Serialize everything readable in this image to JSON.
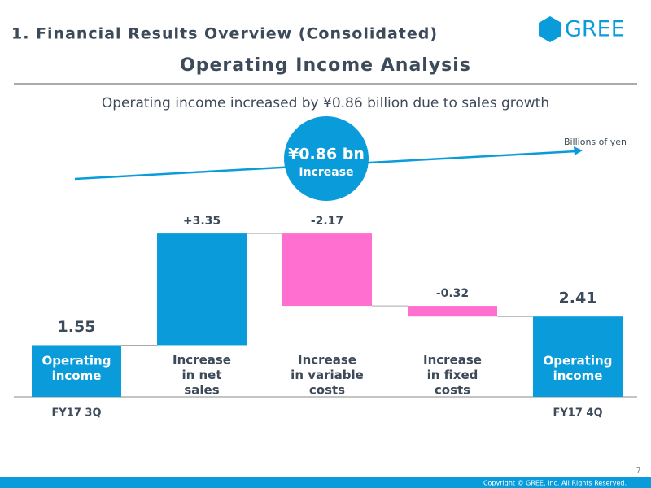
{
  "header": {
    "title": "1. Financial Results Overview (Consolidated)",
    "logo": "GREE"
  },
  "chart_data": {
    "type": "waterfall",
    "title": "Operating Income Analysis",
    "subtitle": "Operating income increased by ¥0.86 billion due to sales growth",
    "unit_label": "Billions of yen",
    "annotation": {
      "amount": "¥0.86 bn",
      "text": "Increase"
    },
    "categories": [
      [
        "Operating",
        "income"
      ],
      [
        "Increase",
        "in net",
        "sales"
      ],
      [
        "Increase",
        "in variable",
        "costs"
      ],
      [
        "Increase",
        "in fixed",
        "costs"
      ],
      [
        "Operating",
        "income"
      ]
    ],
    "period_labels": [
      "FY17 3Q",
      null,
      null,
      null,
      "FY17 4Q"
    ],
    "values": [
      1.55,
      3.35,
      -2.17,
      -0.32,
      2.41
    ],
    "value_labels": [
      "1.55",
      "+3.35",
      "-2.17",
      "-0.32",
      "2.41"
    ],
    "totals": [
      true,
      false,
      false,
      false,
      true
    ],
    "color_total": "#0a9bdb",
    "color_increase": "#0a9bdb",
    "color_decrease": "#ff6fcf"
  },
  "footer": {
    "page": "7",
    "copyright": "Copyright © GREE, Inc. All Rights Reserved."
  }
}
